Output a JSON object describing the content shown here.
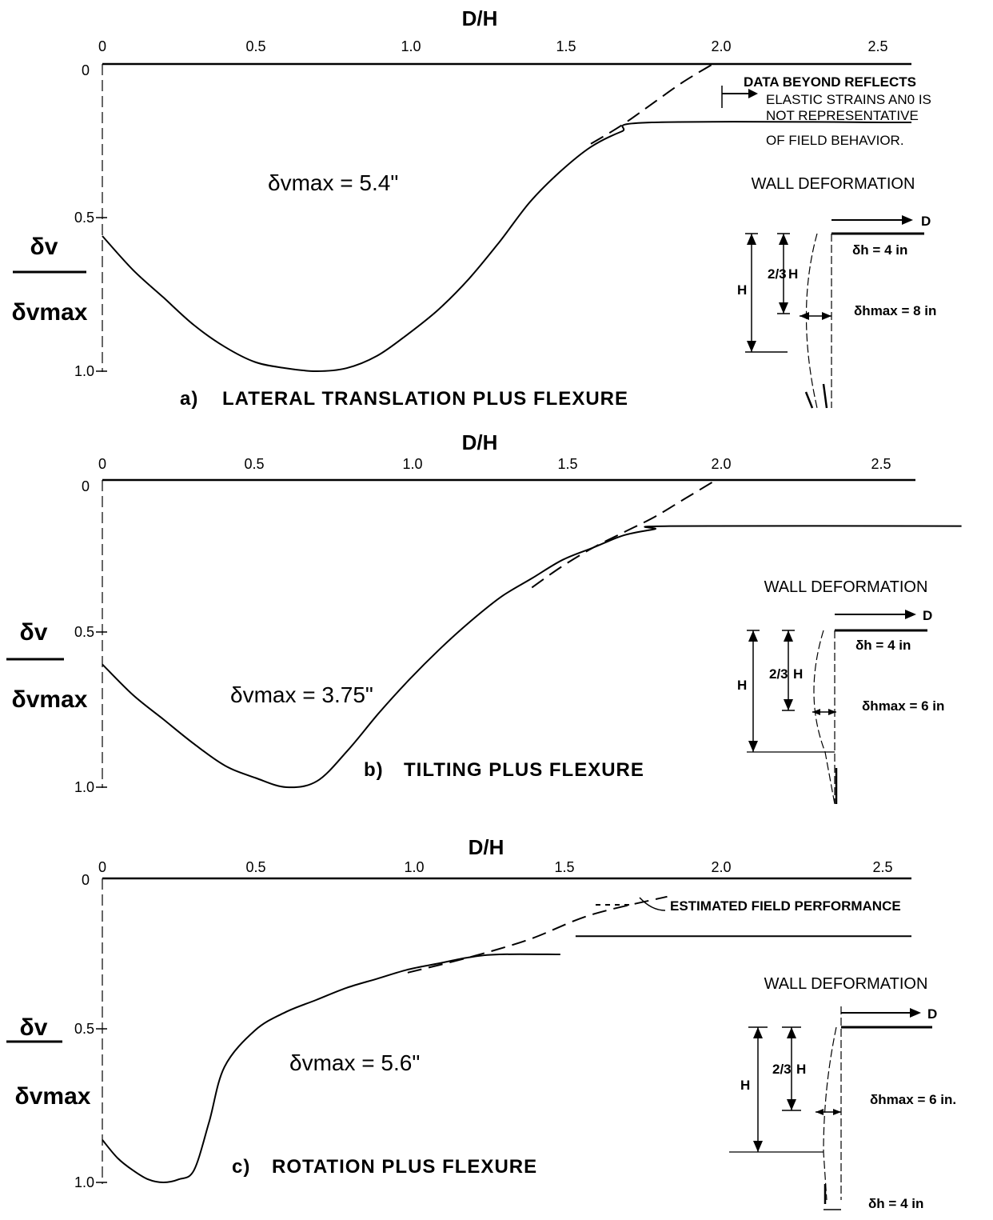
{
  "chart_data": [
    {
      "type": "line",
      "panel_label": "a)",
      "caption": "LATERAL TRANSLATION PLUS FLEXURE",
      "title": "D/H",
      "xlabel": "D/H",
      "ylabel_top": "δv",
      "ylabel_bottom": "δvmax",
      "x_ticks": [
        "0",
        "0.5",
        "1.0",
        "1.5",
        "2.0",
        "2.5"
      ],
      "y_ticks": [
        "0",
        "0.5",
        "1.0"
      ],
      "xlim": [
        0,
        2.65
      ],
      "ylim": [
        0,
        1.0
      ],
      "y_inverted": true,
      "dmax_text": "δvmax = 5.4\"",
      "series": [
        {
          "style": "solid",
          "x": [
            0,
            0.1,
            0.2,
            0.3,
            0.4,
            0.5,
            0.6,
            0.7,
            0.8,
            0.9,
            1.0,
            1.1,
            1.2,
            1.3,
            1.4,
            1.5,
            1.6,
            1.7,
            1.8,
            2.65
          ],
          "y": [
            0.56,
            0.67,
            0.76,
            0.85,
            0.92,
            0.97,
            0.99,
            1.0,
            0.99,
            0.95,
            0.88,
            0.8,
            0.7,
            0.58,
            0.45,
            0.35,
            0.27,
            0.22,
            0.19,
            0.19
          ]
        },
        {
          "style": "dashed",
          "x": [
            1.6,
            1.7,
            1.8,
            1.9,
            2.0
          ],
          "y": [
            0.26,
            0.2,
            0.13,
            0.06,
            0.0
          ]
        }
      ],
      "note_lines": [
        "DATA BEYOND REFLECTS",
        "ELASTIC STRAINS AN0 IS",
        "NOT REPRESENTATIVE",
        "OF FIELD BEHAVIOR."
      ],
      "inset": {
        "title": "WALL DEFORMATION",
        "d_label": "D",
        "h_label": "H",
        "frac_label": "2/3",
        "dh_label": "δh = 4 in",
        "dhmax_label": "δhmax = 8 in"
      }
    },
    {
      "type": "line",
      "panel_label": "b)",
      "caption": "TILTING PLUS FLEXURE",
      "title": "D/H",
      "xlabel": "D/H",
      "ylabel_top": "δv",
      "ylabel_bottom": "δvmax",
      "x_ticks": [
        "0",
        "0.5",
        "1.0",
        "1.5",
        "2.0",
        "2.5"
      ],
      "y_ticks": [
        "0",
        "0.5",
        "1.0"
      ],
      "xlim": [
        0,
        2.65
      ],
      "ylim": [
        0,
        1.0
      ],
      "y_inverted": true,
      "dmax_text": "δvmax = 3.75\"",
      "series": [
        {
          "style": "solid",
          "x": [
            0,
            0.1,
            0.2,
            0.3,
            0.4,
            0.5,
            0.6,
            0.7,
            0.8,
            0.9,
            1.0,
            1.1,
            1.2,
            1.3,
            1.4,
            1.5,
            1.6,
            1.7,
            1.8,
            1.85,
            2.8
          ],
          "y": [
            0.6,
            0.7,
            0.78,
            0.86,
            0.93,
            0.97,
            1.0,
            0.98,
            0.88,
            0.76,
            0.65,
            0.55,
            0.46,
            0.38,
            0.32,
            0.26,
            0.22,
            0.18,
            0.16,
            0.15,
            0.15
          ]
        },
        {
          "style": "dashed",
          "x": [
            1.4,
            1.5,
            1.6,
            1.7,
            1.8,
            1.9,
            2.0
          ],
          "y": [
            0.35,
            0.28,
            0.22,
            0.17,
            0.12,
            0.06,
            0.0
          ]
        }
      ],
      "inset": {
        "title": "WALL DEFORMATION",
        "d_label": "D",
        "h_label": "H",
        "frac_label": "2/3",
        "dh_label": "δh = 4 in",
        "dhmax_label": "δhmax = 6 in"
      }
    },
    {
      "type": "line",
      "panel_label": "c)",
      "caption": "ROTATION PLUS FLEXURE",
      "title": "D/H",
      "xlabel": "D/H",
      "ylabel_top": "δv",
      "ylabel_bottom": "δvmax",
      "x_ticks": [
        "0",
        "0.5",
        "1.0",
        "1.5",
        "2.0",
        "2.5"
      ],
      "y_ticks": [
        "0",
        "0.5",
        "1.0"
      ],
      "xlim": [
        0,
        2.65
      ],
      "ylim": [
        0,
        1.0
      ],
      "y_inverted": true,
      "dmax_text": "δvmax = 5.6\"",
      "series": [
        {
          "style": "solid",
          "x": [
            0,
            0.05,
            0.1,
            0.15,
            0.2,
            0.25,
            0.3,
            0.35,
            0.4,
            0.5,
            0.6,
            0.7,
            0.8,
            0.9,
            1.0,
            1.1,
            1.2,
            1.3,
            1.5
          ],
          "y": [
            0.86,
            0.92,
            0.96,
            0.99,
            1.0,
            0.99,
            0.96,
            0.8,
            0.62,
            0.5,
            0.44,
            0.4,
            0.36,
            0.33,
            0.3,
            0.28,
            0.26,
            0.25,
            0.25
          ]
        },
        {
          "style": "solid",
          "x": [
            1.55,
            2.65
          ],
          "y": [
            0.19,
            0.19
          ]
        },
        {
          "style": "dashed",
          "x": [
            1.0,
            1.2,
            1.4,
            1.6,
            1.85
          ],
          "y": [
            0.31,
            0.26,
            0.2,
            0.12,
            0.06
          ]
        }
      ],
      "legend_text": "ESTIMATED FIELD PERFORMANCE",
      "inset": {
        "title": "WALL DEFORMATION",
        "d_label": "D",
        "h_label": "H",
        "frac_label": "2/3",
        "dh_label": "δh = 4 in",
        "dhmax_label": "δhmax = 6 in."
      }
    }
  ]
}
